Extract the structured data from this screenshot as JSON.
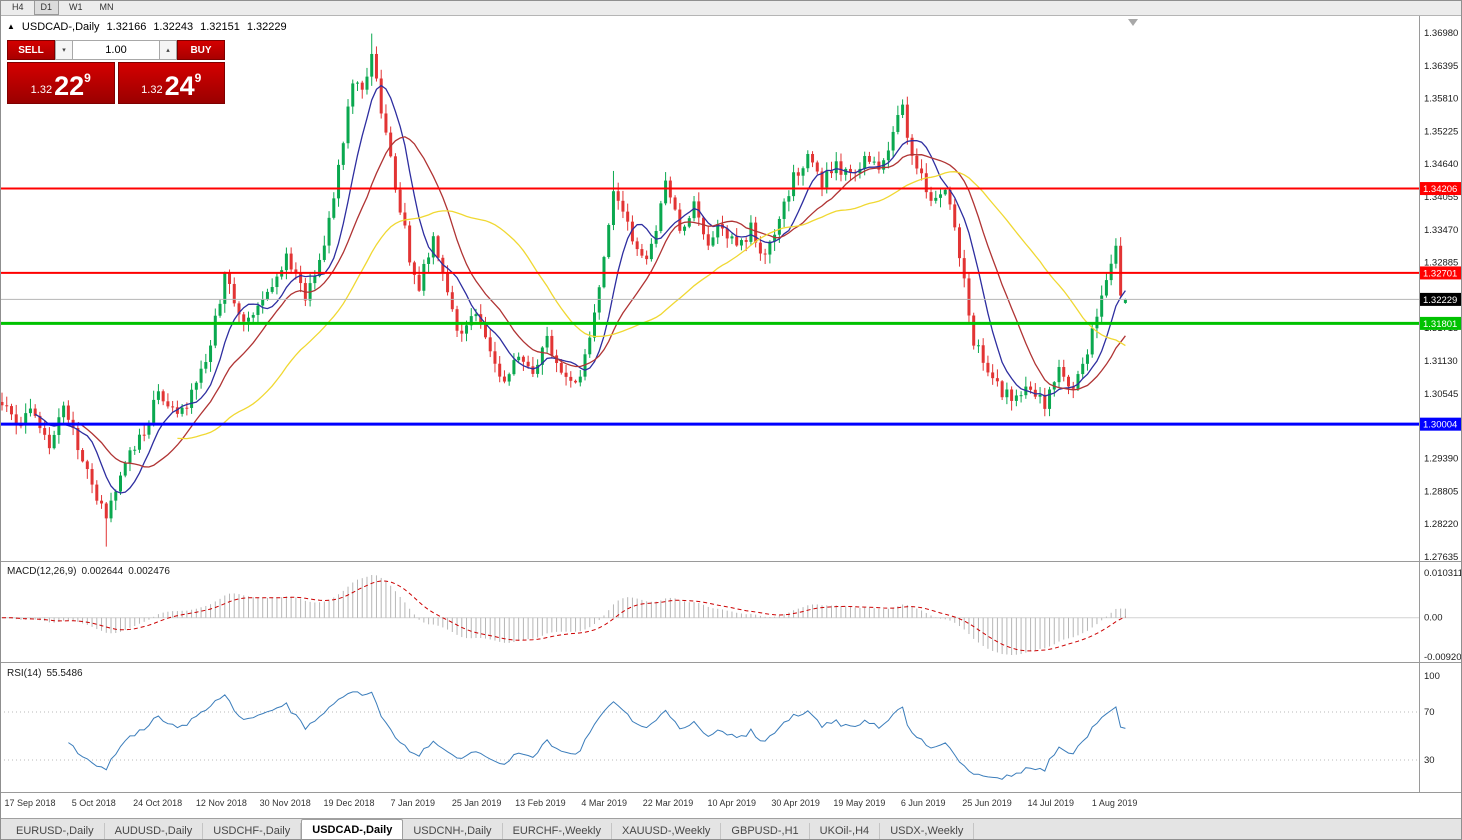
{
  "toolbar": {
    "timeframes": [
      {
        "label": "H4",
        "active": false
      },
      {
        "label": "D1",
        "active": true
      },
      {
        "label": "W1",
        "active": false
      },
      {
        "label": "MN",
        "active": false
      }
    ]
  },
  "chart_header": {
    "symbol": "USDCAD-,Daily",
    "open": "1.32166",
    "high": "1.32243",
    "low": "1.32151",
    "close": "1.32229"
  },
  "trade_panel": {
    "sell_label": "SELL",
    "buy_label": "BUY",
    "volume": "1.00",
    "sell_price": {
      "prefix": "1.32",
      "big": "22",
      "sup": "9"
    },
    "buy_price": {
      "prefix": "1.32",
      "big": "24",
      "sup": "9"
    }
  },
  "price_axis": {
    "max": 1.3698,
    "min": 1.27635,
    "labels": [
      "1.36980",
      "1.36395",
      "1.35810",
      "1.35225",
      "1.34640",
      "1.34055",
      "1.33470",
      "1.32885",
      "1.31715",
      "1.31130",
      "1.30545",
      "1.29390",
      "1.28805",
      "1.28220",
      "1.27635"
    ]
  },
  "levels": [
    {
      "value": 1.34206,
      "label": "1.34206",
      "color": "#ff0000",
      "line_color": "#ff0000",
      "width": 2,
      "kind": "resistance"
    },
    {
      "value": 1.32701,
      "label": "1.32701",
      "color": "#ff0000",
      "line_color": "#ff0000",
      "width": 2,
      "kind": "resistance"
    },
    {
      "value": 1.32229,
      "label": "1.32229",
      "color": "#000000",
      "line_color": "#b4b4b4",
      "width": 1,
      "kind": "current-price"
    },
    {
      "value": 1.31801,
      "label": "1.31801",
      "color": "#00c200",
      "line_color": "#00c200",
      "width": 3,
      "kind": "support"
    },
    {
      "value": 1.30004,
      "label": "1.30004",
      "color": "#0000ff",
      "line_color": "#0000ff",
      "width": 3,
      "kind": "support"
    }
  ],
  "macd": {
    "label": "MACD(12,26,9)",
    "value_main": "0.002644",
    "value_signal": "0.002476",
    "axis_top": "0.010311",
    "axis_zero": "0.00",
    "axis_bottom": "-0.0092030"
  },
  "rsi": {
    "label": "RSI(14)",
    "value": "55.5486",
    "axis": [
      "100",
      "70",
      "30"
    ]
  },
  "time_axis": [
    "17 Sep 2018",
    "5 Oct 2018",
    "24 Oct 2018",
    "12 Nov 2018",
    "30 Nov 2018",
    "19 Dec 2018",
    "7 Jan 2019",
    "25 Jan 2019",
    "13 Feb 2019",
    "4 Mar 2019",
    "22 Mar 2019",
    "10 Apr 2019",
    "30 Apr 2019",
    "19 May 2019",
    "6 Jun 2019",
    "25 Jun 2019",
    "14 Jul 2019",
    "1 Aug 2019"
  ],
  "tabs": [
    {
      "label": "EURUSD-,Daily",
      "active": false
    },
    {
      "label": "AUDUSD-,Daily",
      "active": false
    },
    {
      "label": "USDCHF-,Daily",
      "active": false
    },
    {
      "label": "USDCAD-,Daily",
      "active": true
    },
    {
      "label": "USDCNH-,Daily",
      "active": false
    },
    {
      "label": "EURCHF-,Weekly",
      "active": false
    },
    {
      "label": "XAUUSD-,Weekly",
      "active": false
    },
    {
      "label": "GBPUSD-,H1",
      "active": false
    },
    {
      "label": "UKOil-,H4",
      "active": false
    },
    {
      "label": "USDX-,Weekly",
      "active": false
    }
  ],
  "chart_data": {
    "type": "candlestick",
    "symbol": "USDCAD",
    "timeframe": "Daily",
    "bars": 238,
    "ylim": [
      1.27635,
      1.3698
    ],
    "anchors": [
      [
        0,
        1.304
      ],
      [
        3,
        1.299
      ],
      [
        6,
        1.303
      ],
      [
        10,
        1.296
      ],
      [
        13,
        1.304
      ],
      [
        17,
        1.293
      ],
      [
        22,
        1.283
      ],
      [
        26,
        1.293
      ],
      [
        30,
        1.299
      ],
      [
        33,
        1.306
      ],
      [
        38,
        1.302
      ],
      [
        44,
        1.314
      ],
      [
        47,
        1.327
      ],
      [
        51,
        1.318
      ],
      [
        56,
        1.324
      ],
      [
        60,
        1.33
      ],
      [
        64,
        1.323
      ],
      [
        68,
        1.332
      ],
      [
        72,
        1.35
      ],
      [
        74,
        1.362
      ],
      [
        76,
        1.359
      ],
      [
        78,
        1.365
      ],
      [
        80,
        1.356
      ],
      [
        83,
        1.343
      ],
      [
        86,
        1.33
      ],
      [
        88,
        1.325
      ],
      [
        91,
        1.333
      ],
      [
        94,
        1.323
      ],
      [
        97,
        1.315
      ],
      [
        100,
        1.32
      ],
      [
        103,
        1.313
      ],
      [
        106,
        1.307
      ],
      [
        109,
        1.312
      ],
      [
        112,
        1.31
      ],
      [
        115,
        1.315
      ],
      [
        118,
        1.31
      ],
      [
        121,
        1.307
      ],
      [
        124,
        1.315
      ],
      [
        127,
        1.33
      ],
      [
        129,
        1.342
      ],
      [
        132,
        1.335
      ],
      [
        135,
        1.329
      ],
      [
        138,
        1.334
      ],
      [
        140,
        1.343
      ],
      [
        143,
        1.335
      ],
      [
        146,
        1.339
      ],
      [
        149,
        1.333
      ],
      [
        152,
        1.336
      ],
      [
        155,
        1.331
      ],
      [
        158,
        1.335
      ],
      [
        161,
        1.33
      ],
      [
        164,
        1.336
      ],
      [
        167,
        1.344
      ],
      [
        170,
        1.348
      ],
      [
        173,
        1.343
      ],
      [
        176,
        1.346
      ],
      [
        179,
        1.344
      ],
      [
        182,
        1.348
      ],
      [
        185,
        1.346
      ],
      [
        188,
        1.352
      ],
      [
        190,
        1.356
      ],
      [
        192,
        1.348
      ],
      [
        194,
        1.344
      ],
      [
        196,
        1.339
      ],
      [
        199,
        1.343
      ],
      [
        202,
        1.33
      ],
      [
        205,
        1.315
      ],
      [
        208,
        1.31
      ],
      [
        211,
        1.306
      ],
      [
        214,
        1.304
      ],
      [
        217,
        1.307
      ],
      [
        220,
        1.303
      ],
      [
        223,
        1.31
      ],
      [
        226,
        1.306
      ],
      [
        229,
        1.313
      ],
      [
        232,
        1.322
      ],
      [
        234,
        1.328
      ],
      [
        235,
        1.331
      ],
      [
        236,
        1.324
      ],
      [
        237,
        1.32229
      ]
    ],
    "wick_overrides": [
      [
        22,
        "l",
        1.2782
      ],
      [
        78,
        "h",
        1.3698
      ],
      [
        129,
        "h",
        1.3452
      ],
      [
        140,
        "h",
        1.345
      ],
      [
        235,
        "h",
        1.3332
      ]
    ],
    "last_bar": {
      "o": 1.32166,
      "h": 1.32243,
      "l": 1.32151,
      "c": 1.32229
    },
    "up_color": "#0aa84f",
    "down_color": "#e23434",
    "moving_averages": [
      {
        "name": "ma-fast",
        "period": 8,
        "color": "#2e2ea0"
      },
      {
        "name": "ma-medium",
        "period": 17,
        "color": "#b03434"
      },
      {
        "name": "ma-slow",
        "period": 38,
        "color": "#f0d832"
      }
    ],
    "macd": {
      "fast": 12,
      "slow": 26,
      "signal": 9,
      "hist_color": "#b6b6b6",
      "signal_color": "#cc0000"
    },
    "rsi": {
      "period": 14,
      "color": "#3b7dbb",
      "levels": [
        70,
        30
      ]
    }
  }
}
